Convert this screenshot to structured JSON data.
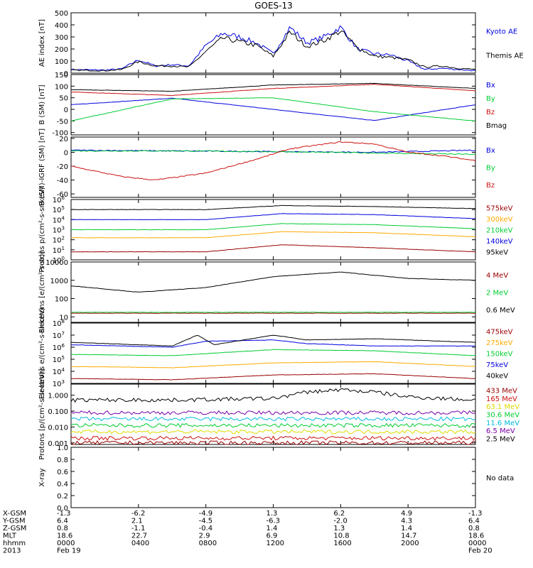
{
  "title": "GOES-13",
  "colors": {
    "black": "#000000",
    "blue": "#0000dd",
    "green": "#00cc33",
    "red": "#cc1111",
    "orange": "#ffaa00",
    "darkred": "#990000",
    "yellow": "#dddd00",
    "cyan": "#00bbdd",
    "purple": "#7700aa"
  },
  "chart_data": [
    {
      "type": "line",
      "ylabel": "AE index [nT]",
      "ylim": [
        0,
        500
      ],
      "yticks": [
        "0",
        "100",
        "200",
        "300",
        "400",
        "500"
      ],
      "series": [
        {
          "name": "Kyoto AE",
          "color": "blue",
          "x": [
            0,
            2,
            3,
            4,
            5,
            6,
            7,
            8,
            9,
            10,
            11,
            12,
            13,
            14,
            15,
            16,
            17,
            18,
            19,
            20,
            21,
            22,
            23,
            24
          ],
          "values": [
            30,
            25,
            35,
            110,
            60,
            70,
            60,
            230,
            330,
            300,
            250,
            160,
            380,
            250,
            300,
            380,
            200,
            160,
            150,
            100,
            30,
            40,
            30,
            20
          ]
        },
        {
          "name": "Themis AE",
          "color": "black",
          "x": [
            0,
            2,
            3,
            4,
            5,
            6,
            7,
            8,
            9,
            10,
            11,
            12,
            13,
            14,
            15,
            16,
            17,
            18,
            19,
            20,
            21,
            22,
            23,
            24
          ],
          "values": [
            25,
            20,
            30,
            95,
            60,
            60,
            50,
            180,
            290,
            260,
            230,
            140,
            340,
            220,
            270,
            350,
            210,
            140,
            130,
            110,
            50,
            60,
            40,
            30
          ]
        }
      ]
    },
    {
      "type": "line",
      "ylabel": "B (SM) [nT]",
      "ylim": [
        -110,
        150
      ],
      "yticks": [
        "-100",
        "-50",
        "0",
        "50",
        "100",
        "150"
      ],
      "series": [
        {
          "name": "Bx",
          "color": "blue",
          "x": [
            0,
            6,
            12,
            18,
            24
          ],
          "values": [
            20,
            48,
            0,
            -48,
            20
          ]
        },
        {
          "name": "By",
          "color": "green",
          "x": [
            0,
            6,
            12,
            18,
            24
          ],
          "values": [
            -50,
            45,
            50,
            -10,
            -50
          ]
        },
        {
          "name": "Bz",
          "color": "red",
          "x": [
            0,
            6,
            12,
            18,
            24
          ],
          "values": [
            75,
            60,
            90,
            108,
            80
          ]
        },
        {
          "name": "Bmag",
          "color": "black",
          "x": [
            0,
            6,
            12,
            18,
            24
          ],
          "values": [
            85,
            78,
            105,
            112,
            90
          ]
        }
      ]
    },
    {
      "type": "line",
      "ylabel": "B (SM)-IGRF (SM) [nT]",
      "ylim": [
        -65,
        22
      ],
      "yticks": [
        "-60",
        "-40",
        "-20",
        "0",
        "20"
      ],
      "series": [
        {
          "name": "Bx",
          "color": "blue",
          "x": [
            0,
            6,
            12,
            18,
            24
          ],
          "values": [
            3,
            2,
            1,
            0,
            3
          ]
        },
        {
          "name": "By",
          "color": "green",
          "x": [
            0,
            6,
            12,
            18,
            24
          ],
          "values": [
            2,
            2,
            1,
            -1,
            -3
          ]
        },
        {
          "name": "Bz",
          "color": "red",
          "x": [
            0,
            3,
            5,
            8,
            11,
            13,
            16,
            18,
            20,
            22,
            24
          ],
          "values": [
            -20,
            -35,
            -40,
            -30,
            -10,
            5,
            15,
            12,
            0,
            -5,
            -12
          ]
        }
      ]
    },
    {
      "type": "line",
      "ylabel": "Protons p/(cm²-s-sr-keV)",
      "scale": "log",
      "ylim_exp": [
        0,
        6
      ],
      "yticks": [
        "10^0",
        "10^1",
        "10^2",
        "10^3",
        "10^4",
        "10^5",
        "10^6"
      ],
      "series": [
        {
          "name": "575keV",
          "color": "darkred",
          "x": [
            0,
            8,
            12.5,
            18,
            24
          ],
          "values": [
            0.8,
            0.8,
            1.5,
            1.2,
            0.8
          ]
        },
        {
          "name": "300keV",
          "color": "orange",
          "x": [
            0,
            8,
            12.5,
            18,
            24
          ],
          "values": [
            2.2,
            2.2,
            2.8,
            2.7,
            2.3
          ]
        },
        {
          "name": "210keV",
          "color": "green",
          "x": [
            0,
            8,
            12.5,
            18,
            24
          ],
          "values": [
            3.0,
            3.0,
            3.6,
            3.5,
            3.1
          ]
        },
        {
          "name": "140keV",
          "color": "blue",
          "x": [
            0,
            8,
            12.5,
            18,
            24
          ],
          "values": [
            4.0,
            4.0,
            4.6,
            4.5,
            4.1
          ]
        },
        {
          "name": "95keV",
          "color": "black",
          "x": [
            0,
            8,
            12.5,
            18,
            24
          ],
          "values": [
            5.0,
            5.0,
            5.4,
            5.3,
            5.1
          ]
        }
      ]
    },
    {
      "type": "line",
      "ylabel": "Electrons [e/(cm²-s-sr)]",
      "scale": "log",
      "ylim_exp": [
        0.7,
        4
      ],
      "yticks": [
        "10",
        "100",
        "1000",
        "10000"
      ],
      "series": [
        {
          "name": "4 MeV",
          "color": "darkred",
          "x": [
            0,
            24
          ],
          "values": [
            1.2,
            1.2
          ]
        },
        {
          "name": "2 MeV",
          "color": "green",
          "x": [
            0,
            24
          ],
          "values": [
            1.25,
            1.25
          ]
        },
        {
          "name": "0.6 MeV",
          "color": "black",
          "x": [
            0,
            4,
            8,
            12,
            16,
            20,
            24
          ],
          "values": [
            2.7,
            2.35,
            2.6,
            3.2,
            3.45,
            3.1,
            3.0
          ]
        }
      ]
    },
    {
      "type": "line",
      "ylabel": "Electrons e/(cm²-s-sr-keV)",
      "scale": "log",
      "ylim_exp": [
        3,
        8
      ],
      "yticks": [
        "10^3",
        "10^4",
        "10^5",
        "10^6",
        "10^7",
        "10^8"
      ],
      "series": [
        {
          "name": "475keV",
          "color": "darkred",
          "x": [
            0,
            6,
            12,
            18,
            24
          ],
          "values": [
            3.4,
            3.3,
            3.7,
            3.8,
            3.4
          ]
        },
        {
          "name": "275keV",
          "color": "orange",
          "x": [
            0,
            6,
            12,
            18,
            24
          ],
          "values": [
            4.4,
            4.3,
            4.7,
            4.8,
            4.4
          ]
        },
        {
          "name": "150keV",
          "color": "green",
          "x": [
            0,
            6,
            12,
            18,
            24
          ],
          "values": [
            5.4,
            5.3,
            5.8,
            5.7,
            5.3
          ]
        },
        {
          "name": "75keV",
          "color": "blue",
          "x": [
            0,
            6,
            8,
            12,
            14,
            18,
            24
          ],
          "values": [
            6.2,
            6.0,
            6.5,
            6.6,
            6.3,
            6.1,
            6.1
          ]
        },
        {
          "name": "40keV",
          "color": "black",
          "x": [
            0,
            6,
            7.5,
            8.5,
            12,
            14,
            18,
            24
          ],
          "values": [
            6.4,
            6.1,
            7.0,
            6.2,
            7.0,
            6.6,
            6.7,
            6.4
          ]
        }
      ]
    },
    {
      "type": "line",
      "ylabel": "Protons [p/(cm²-s-sr-keV)]",
      "scale": "log",
      "ylim_exp": [
        -3.1,
        0.7
      ],
      "yticks": [
        "0.001",
        "0.010",
        "0.100",
        "1.000"
      ],
      "series": [
        {
          "name": "433 MeV",
          "color": "darkred",
          "x": [
            0,
            24
          ],
          "values": [
            -3.0,
            -3.0
          ]
        },
        {
          "name": "165 MeV",
          "color": "red",
          "x": [
            0,
            24
          ],
          "values": [
            -2.7,
            -2.7
          ]
        },
        {
          "name": "63.1 MeV",
          "color": "yellow",
          "x": [
            0,
            24
          ],
          "values": [
            -2.3,
            -2.3
          ]
        },
        {
          "name": "30.6 MeV",
          "color": "green",
          "x": [
            0,
            24
          ],
          "values": [
            -1.9,
            -1.9
          ]
        },
        {
          "name": "11.6 MeV",
          "color": "cyan",
          "x": [
            0,
            24
          ],
          "values": [
            -1.5,
            -1.5
          ]
        },
        {
          "name": "6.5 MeV",
          "color": "purple",
          "x": [
            0,
            24
          ],
          "values": [
            -1.1,
            -1.1
          ]
        },
        {
          "name": "2.5 MeV",
          "color": "black",
          "x": [
            0,
            6,
            12,
            14,
            16,
            18,
            20,
            24
          ],
          "values": [
            -0.3,
            -0.3,
            -0.2,
            0.2,
            0.35,
            0.2,
            -0.1,
            -0.3
          ]
        }
      ]
    },
    {
      "type": "line",
      "ylabel": "X-ray",
      "ylim": [
        0,
        1
      ],
      "yticks": [
        "0.0",
        "0.2",
        "0.4",
        "0.6",
        "0.8",
        "1.0"
      ],
      "series": [],
      "note": "No data"
    }
  ],
  "footer": {
    "labels": [
      "X-GSM",
      "Y-GSM",
      "Z-GSM",
      "MLT",
      "hhmm",
      "2013"
    ],
    "columns": [
      [
        "-1.3",
        "6.4",
        "0.8",
        "18.6",
        "0000",
        "Feb 19"
      ],
      [
        "-6.2",
        "2.1",
        "-1.1",
        "22.7",
        "0400",
        ""
      ],
      [
        "-4.9",
        "-4.5",
        "-0.4",
        "2.9",
        "0800",
        ""
      ],
      [
        "1.3",
        "-6.3",
        "1.4",
        "6.9",
        "1200",
        ""
      ],
      [
        "6.2",
        "-2.0",
        "1.3",
        "10.8",
        "1600",
        ""
      ],
      [
        "4.9",
        "4.3",
        "1.4",
        "14.7",
        "2000",
        ""
      ],
      [
        "-1.3",
        "6.4",
        "0.8",
        "18.6",
        "0000",
        "Feb 20"
      ]
    ]
  }
}
